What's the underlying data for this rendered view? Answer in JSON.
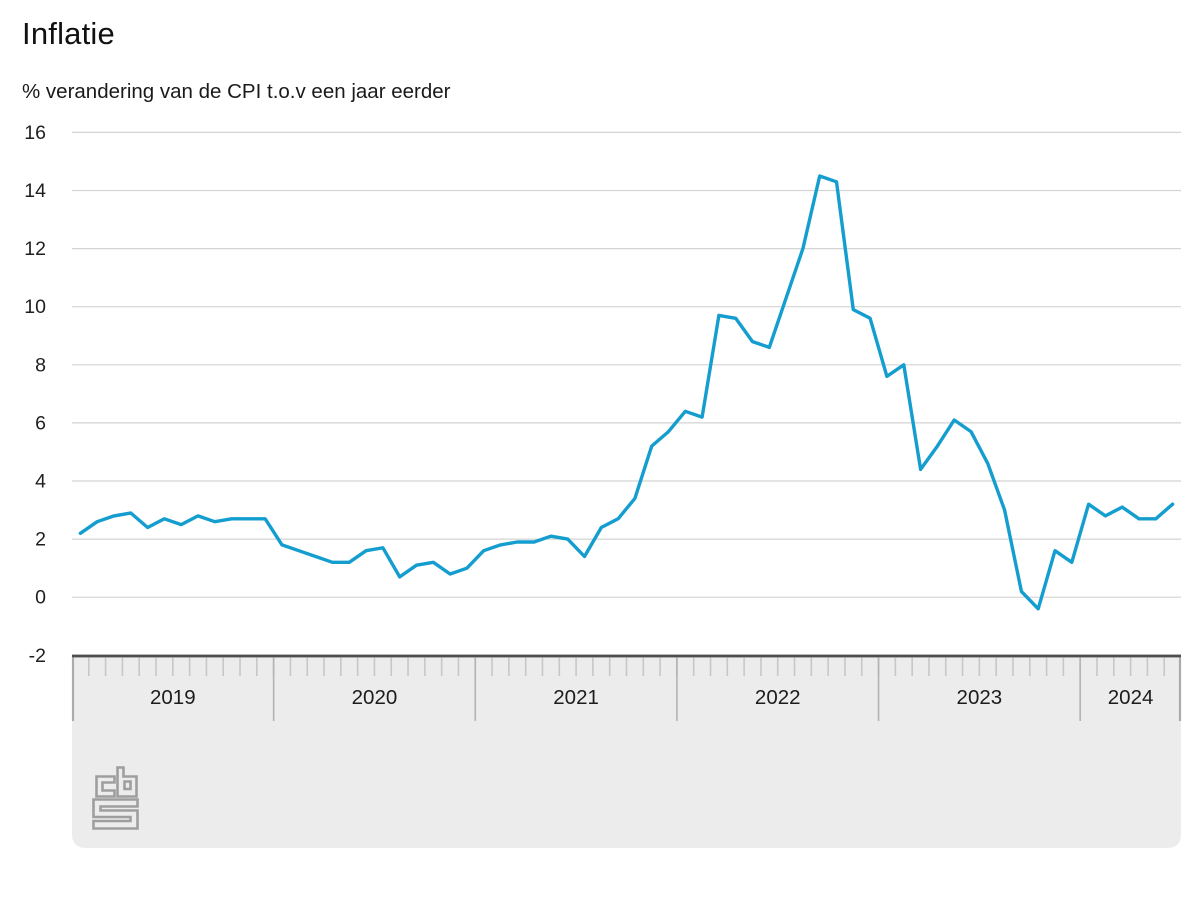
{
  "header": {
    "title": "Inflatie",
    "subtitle": "% verandering van de CPI t.o.v een jaar eerder"
  },
  "chart_data": {
    "type": "line",
    "title": "Inflatie",
    "subtitle": "% verandering van de CPI t.o.v een jaar eerder",
    "x_unit": "month",
    "x_range": {
      "start": "2019-01",
      "end": "2024-06"
    },
    "year_labels": [
      "2019",
      "2020",
      "2021",
      "2022",
      "2023",
      "2024"
    ],
    "y_ticks": [
      16,
      14,
      12,
      10,
      8,
      6,
      4,
      2,
      0,
      -2
    ],
    "ylim": [
      -2,
      16
    ],
    "grid": "horizontal-only",
    "legend": "none",
    "series": [
      {
        "name": "Inflatie (% verandering CPI t.o.v een jaar eerder)",
        "values": [
          2.2,
          2.6,
          2.8,
          2.9,
          2.4,
          2.7,
          2.5,
          2.8,
          2.6,
          2.7,
          2.7,
          2.7,
          1.8,
          1.6,
          1.4,
          1.2,
          1.2,
          1.6,
          1.7,
          0.7,
          1.1,
          1.2,
          0.8,
          1.0,
          1.6,
          1.8,
          1.9,
          1.9,
          2.1,
          2.0,
          1.4,
          2.4,
          2.7,
          3.4,
          5.2,
          5.7,
          6.4,
          6.2,
          9.7,
          9.6,
          8.8,
          8.6,
          10.3,
          12.0,
          14.5,
          14.3,
          9.9,
          9.6,
          7.6,
          8.0,
          4.4,
          5.2,
          6.1,
          5.7,
          4.6,
          3.0,
          0.2,
          -0.4,
          1.6,
          1.2,
          3.2,
          2.8,
          3.1,
          2.7,
          2.7,
          3.2
        ]
      }
    ]
  },
  "colors": {
    "line": "#149dcf",
    "grid": "#d4d4d4",
    "axis_band_bg": "#ececec",
    "axis_band_border": "#4d4d4d",
    "tick": "#c7c7c7",
    "year_divider": "#b3b3b3",
    "axis_cap": "#ababab",
    "label_text": "#1c1c1c",
    "y_label_text": "#1f1f1f",
    "logo": "#9e9e9e"
  },
  "branding": {
    "logo": "cbs-logo"
  }
}
